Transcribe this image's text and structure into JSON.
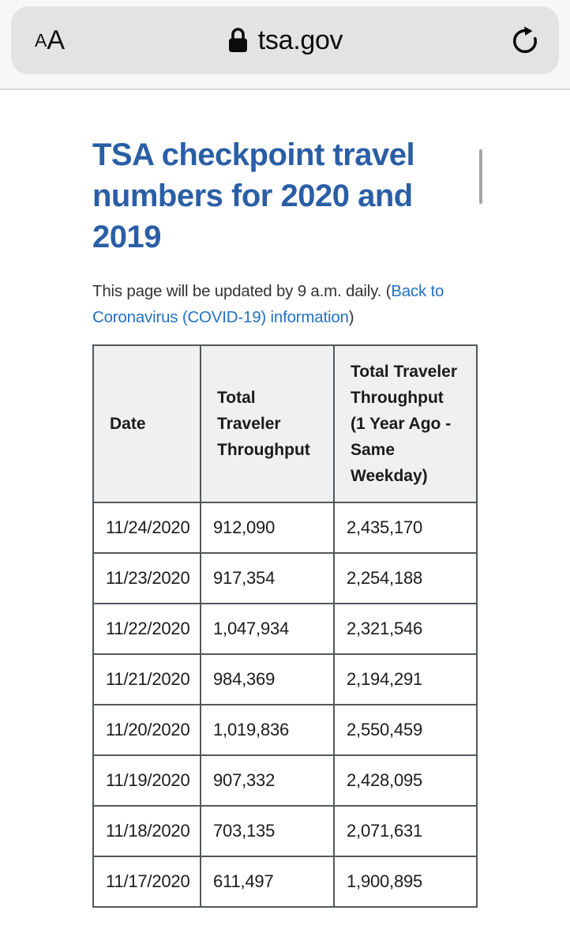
{
  "browser": {
    "text_size_small": "A",
    "text_size_big": "A",
    "url": "tsa.gov",
    "icons": {
      "lock": "lock-icon",
      "reload": "reload-icon"
    }
  },
  "page": {
    "title": "TSA checkpoint travel numbers for 2020 and 2019",
    "intro": {
      "prefix": "This page will be updated by 9 a.m. daily. (",
      "link_text": "Back to Coronavirus (COVID-19) information",
      "suffix": ")"
    },
    "table": {
      "headers": [
        "Date",
        "Total Traveler Throughput",
        "Total Traveler Throughput (1 Year Ago - Same Weekday)"
      ],
      "rows": [
        [
          "11/24/2020",
          "912,090",
          "2,435,170"
        ],
        [
          "11/23/2020",
          "917,354",
          "2,254,188"
        ],
        [
          "11/22/2020",
          "1,047,934",
          "2,321,546"
        ],
        [
          "11/21/2020",
          "984,369",
          "2,194,291"
        ],
        [
          "11/20/2020",
          "1,019,836",
          "2,550,459"
        ],
        [
          "11/19/2020",
          "907,332",
          "2,428,095"
        ],
        [
          "11/18/2020",
          "703,135",
          "2,071,631"
        ],
        [
          "11/17/2020",
          "611,497",
          "1,900,895"
        ]
      ]
    }
  },
  "colors": {
    "title_blue": "#2a5ea6",
    "link_blue": "#2470c4",
    "table_border": "#54575c",
    "header_bg": "#f0f0f0",
    "browser_bar_bg": "#f7f7f7",
    "address_pill_bg": "#e3e3e4",
    "scrollbar": "#a4a4a8"
  }
}
